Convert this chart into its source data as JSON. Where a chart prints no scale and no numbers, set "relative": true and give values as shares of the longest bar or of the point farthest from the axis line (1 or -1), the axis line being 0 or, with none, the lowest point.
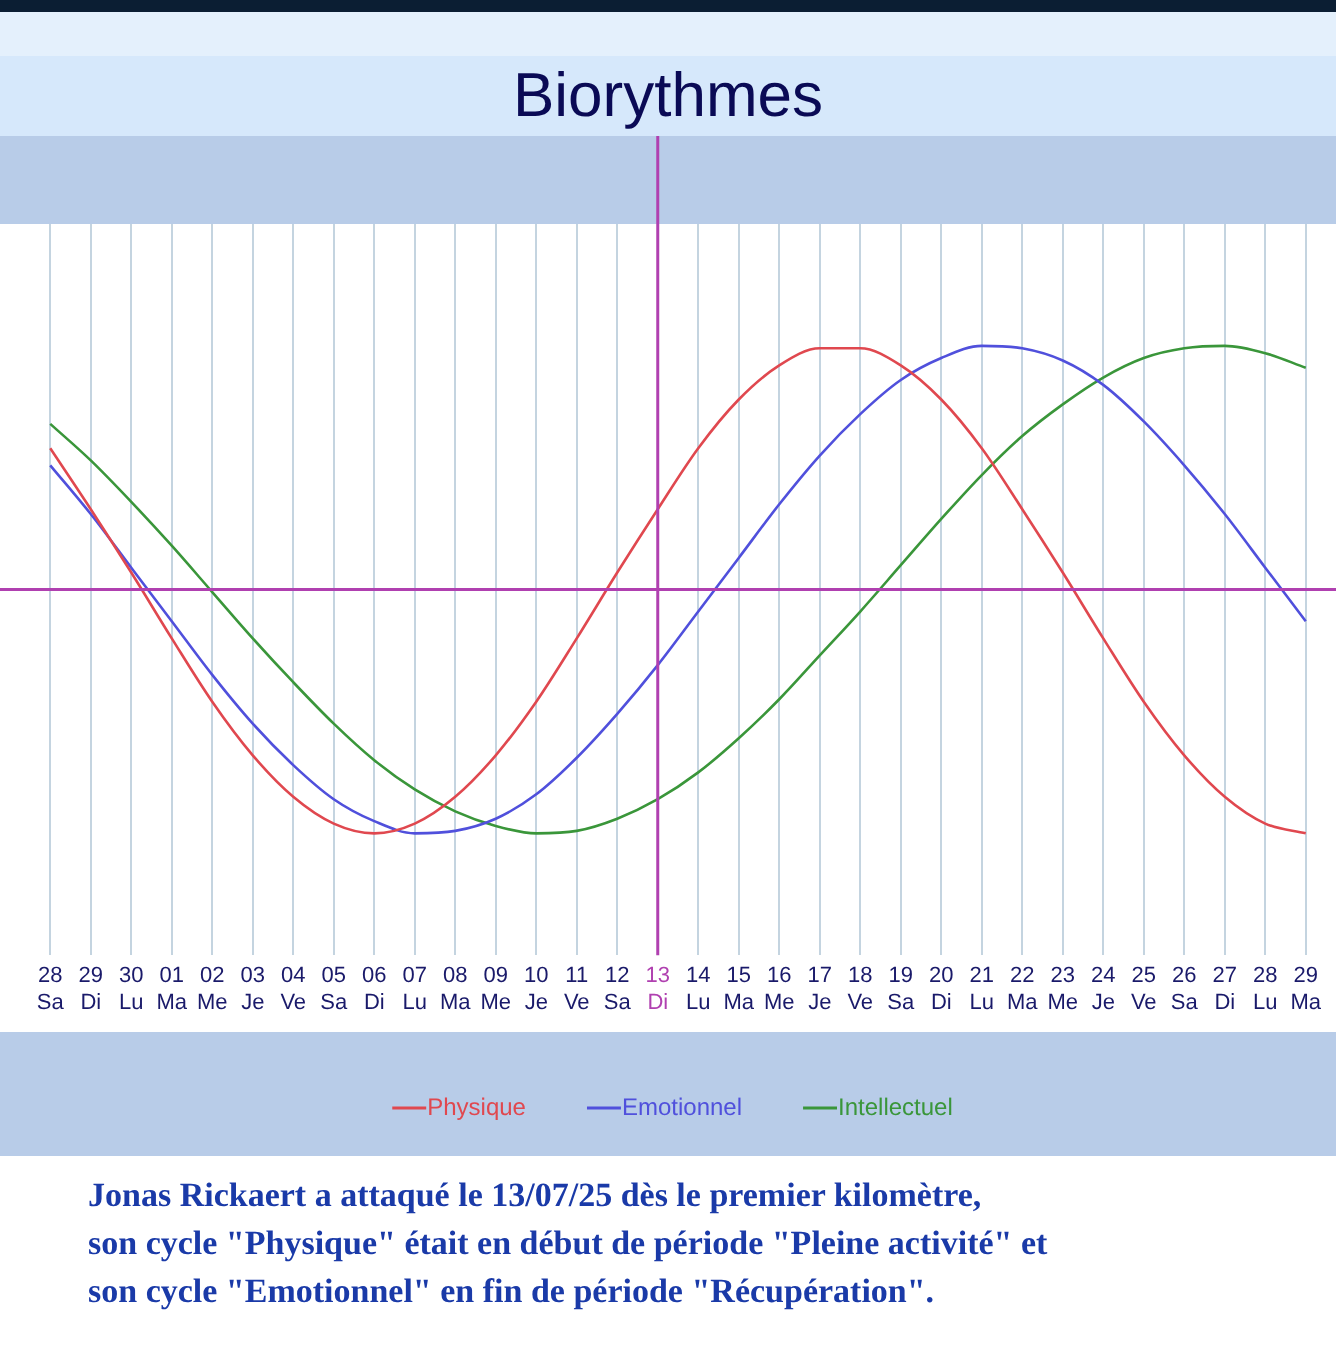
{
  "chart_data": {
    "type": "line",
    "title": "Biorythmes",
    "relative": true,
    "grid": "x",
    "legend": "bottom",
    "marker": "none",
    "line_style": "solid",
    "categories": [
      "28\nSa",
      "29\nDi",
      "30\nLu",
      "01\nMa",
      "02\nMe",
      "03\nJe",
      "04\nVe",
      "05\nSa",
      "06\nDi",
      "07\nLu",
      "08\nMa",
      "09\nMe",
      "10\nJe",
      "11\nVe",
      "12\nSa",
      "13\nDi",
      "14\nLu",
      "15\nMa",
      "16\nMe",
      "17\nJe",
      "18\nVe",
      "19\nSa",
      "20\nDi",
      "21\nLu",
      "22\nMa",
      "23\nMe",
      "24\nJe",
      "25\nVe",
      "26\nSa",
      "27\nDi",
      "28\nLu",
      "29\nMa"
    ],
    "series": [
      {
        "name": "Physique",
        "color": "#e0484f",
        "values": [
          0.58,
          0.33,
          0.07,
          -0.2,
          -0.46,
          -0.68,
          -0.85,
          -0.96,
          -1,
          -0.96,
          -0.85,
          -0.68,
          -0.46,
          -0.2,
          0.07,
          0.33,
          0.58,
          0.78,
          0.92,
          0.99,
          0.99,
          0.92,
          0.78,
          0.58,
          0.33,
          0.07,
          -0.2,
          -0.46,
          -0.68,
          -0.85,
          -0.96,
          -1
        ]
      },
      {
        "name": "Emotionnel",
        "color": "#5050dc",
        "values": [
          0.51,
          0.31,
          0.09,
          -0.13,
          -0.35,
          -0.55,
          -0.72,
          -0.86,
          -0.95,
          -1,
          -0.99,
          -0.94,
          -0.84,
          -0.69,
          -0.51,
          -0.31,
          -0.09,
          0.13,
          0.35,
          0.55,
          0.72,
          0.86,
          0.95,
          1,
          0.99,
          0.94,
          0.84,
          0.69,
          0.51,
          0.31,
          0.09,
          -0.13
        ]
      },
      {
        "name": "Intellectuel",
        "color": "#3a963a",
        "values": [
          0.68,
          0.53,
          0.36,
          0.18,
          -0.01,
          -0.2,
          -0.38,
          -0.55,
          -0.7,
          -0.82,
          -0.91,
          -0.97,
          -1,
          -0.99,
          -0.94,
          -0.86,
          -0.75,
          -0.61,
          -0.45,
          -0.27,
          -0.09,
          0.1,
          0.29,
          0.47,
          0.63,
          0.76,
          0.87,
          0.95,
          0.99,
          1,
          0.97,
          0.91
        ]
      }
    ],
    "ref_lines": [
      {
        "axis": "x",
        "value": "13\nDi",
        "color": "#b040b0"
      },
      {
        "axis": "y",
        "value": 0,
        "color": "#b040b0"
      }
    ],
    "annotations": [
      "Jonas Rickaert a attaqué le 13/07/25 dès le premier kilomètre,\nson cycle \"Physique\" était en début de période \"Pleine activité\" et\nson cycle \"Emotionnel\" en fin de période \"Récupération\"."
    ]
  }
}
